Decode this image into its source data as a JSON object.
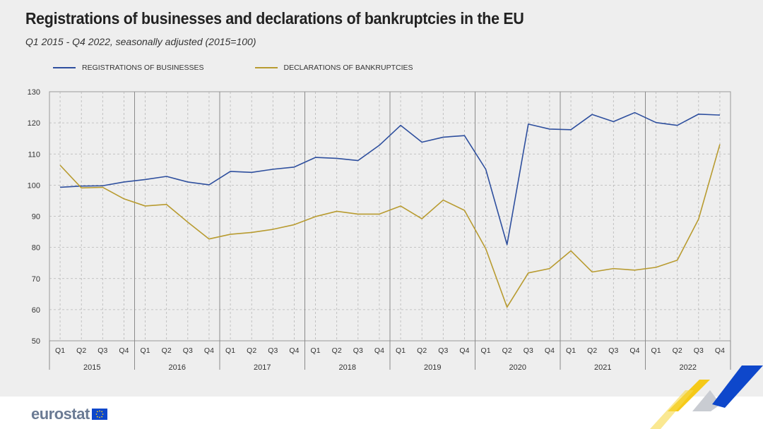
{
  "header": {
    "title": "Registrations of businesses and declarations of bankruptcies in the EU",
    "subtitle": "Q1 2015 - Q4 2022, seasonally adjusted  (2015=100)"
  },
  "brand": {
    "logo_text": "eurostat"
  },
  "chart_data": {
    "type": "line",
    "title": "Registrations of businesses and declarations of bankruptcies in the EU",
    "subtitle": "Q1 2015 - Q4 2022, seasonally adjusted  (2015=100)",
    "x_quarter_labels": [
      "Q1",
      "Q2",
      "Q3",
      "Q4"
    ],
    "x_year_labels": [
      "2015",
      "2016",
      "2017",
      "2018",
      "2019",
      "2020",
      "2021",
      "2022"
    ],
    "x": [
      "2015-Q1",
      "2015-Q2",
      "2015-Q3",
      "2015-Q4",
      "2016-Q1",
      "2016-Q2",
      "2016-Q3",
      "2016-Q4",
      "2017-Q1",
      "2017-Q2",
      "2017-Q3",
      "2017-Q4",
      "2018-Q1",
      "2018-Q2",
      "2018-Q3",
      "2018-Q4",
      "2019-Q1",
      "2019-Q2",
      "2019-Q3",
      "2019-Q4",
      "2020-Q1",
      "2020-Q2",
      "2020-Q3",
      "2020-Q4",
      "2021-Q1",
      "2021-Q2",
      "2021-Q3",
      "2021-Q4",
      "2022-Q1",
      "2022-Q2",
      "2022-Q3",
      "2022-Q4"
    ],
    "series": [
      {
        "name": "REGISTRATIONS OF BUSINESSES",
        "color": "#2e4f9e",
        "values": [
          99.3,
          99.7,
          99.8,
          101,
          101.8,
          102.8,
          101,
          100.1,
          104.4,
          104.1,
          105.1,
          105.8,
          108.9,
          108.6,
          107.9,
          112.8,
          119.2,
          113.8,
          115.4,
          115.9,
          105.1,
          80.9,
          119.6,
          118,
          117.8,
          122.7,
          120.4,
          123.3,
          120.1,
          119.2,
          122.8,
          122.5
        ]
      },
      {
        "name": "DECLARATIONS OF BANKRUPTCIES",
        "color": "#b89b30",
        "values": [
          106.4,
          99.1,
          99.3,
          95.6,
          93.3,
          93.8,
          88.1,
          82.7,
          84.2,
          84.8,
          85.8,
          87.3,
          89.9,
          91.6,
          90.7,
          90.7,
          93.3,
          89.2,
          95.2,
          91.9,
          79.6,
          60.8,
          71.8,
          73.2,
          78.9,
          72.1,
          73.2,
          72.7,
          73.6,
          75.9,
          89.1,
          113.1
        ]
      }
    ],
    "ylim": [
      50,
      130
    ],
    "y_ticks": [
      50,
      60,
      70,
      80,
      90,
      100,
      110,
      120,
      130
    ],
    "grid": true,
    "legend_position": "top-left"
  }
}
